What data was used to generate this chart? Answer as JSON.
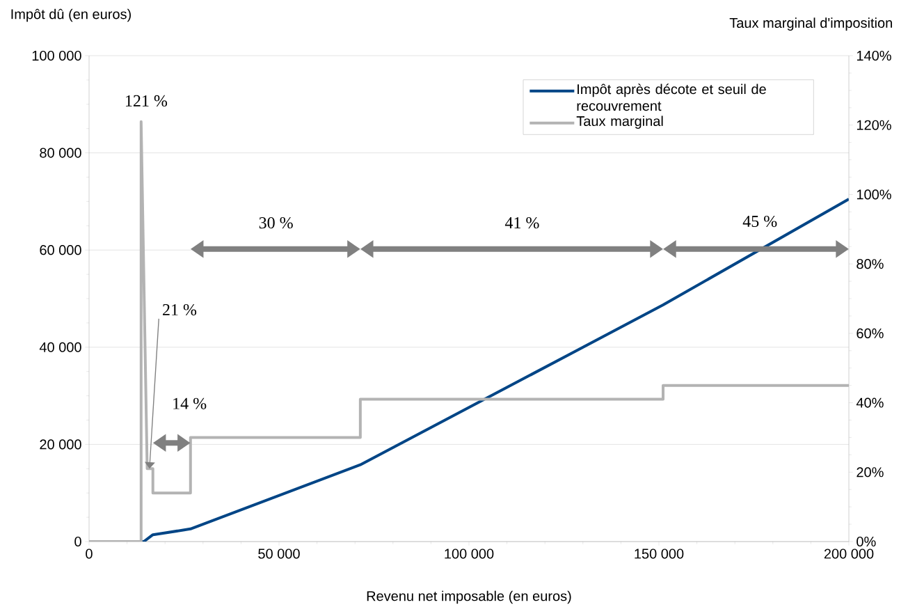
{
  "chart_data": {
    "type": "line",
    "xlabel": "Revenu net imposable (en euros)",
    "ylabel": "Impôt dû (en euros)",
    "y2label": "Taux marginal d'imposition",
    "series": [
      {
        "name": "Impôt après décote et seuil de recouvrement",
        "color": "#004586",
        "x": [
          0,
          14400,
          16800,
          26700,
          71400,
          151100,
          200000
        ],
        "values": [
          0,
          0,
          1400,
          2600,
          15800,
          48700,
          70500
        ]
      },
      {
        "name": "Taux marginal",
        "color": "#b3b3b3",
        "axis": "y2",
        "x": [
          0,
          13700,
          13700,
          15300,
          16800,
          16800,
          26700,
          26700,
          71400,
          71400,
          151100,
          151100,
          200000
        ],
        "values": [
          0,
          0,
          121,
          21,
          21,
          14,
          14,
          30,
          30,
          41,
          41,
          45,
          45
        ]
      }
    ],
    "xlim": [
      0,
      200000
    ],
    "xticks": [
      0,
      {
        "value": 50000,
        "label": "50 000"
      },
      {
        "value": 100000,
        "label": "100 000"
      },
      {
        "value": 150000,
        "label": "150 000"
      },
      {
        "value": 200000,
        "label": "200 000"
      }
    ],
    "ylim": [
      0,
      100000
    ],
    "yticks": [
      0,
      {
        "value": 20000,
        "label": "20 000"
      },
      {
        "value": 40000,
        "label": "40 000"
      },
      {
        "value": 60000,
        "label": "60 000"
      },
      {
        "value": 80000,
        "label": "80 000"
      },
      {
        "value": 100000,
        "label": "100 000"
      }
    ],
    "y2lim": [
      0,
      140
    ],
    "y2ticks": [
      {
        "value": 0,
        "label": "0%"
      },
      {
        "value": 20,
        "label": "20%"
      },
      {
        "value": 40,
        "label": "40%"
      },
      {
        "value": 60,
        "label": "60%"
      },
      {
        "value": 80,
        "label": "80%"
      },
      {
        "value": 100,
        "label": "100%"
      },
      {
        "value": 120,
        "label": "120%"
      },
      {
        "value": 140,
        "label": "140%"
      }
    ],
    "annotations": [
      "121 %",
      {
        "text": "21 %",
        "x": 15900,
        "y": 15000
      },
      "14 %",
      "30 %",
      "41 %",
      "45 %"
    ],
    "grid": "y",
    "legend": "top right"
  }
}
